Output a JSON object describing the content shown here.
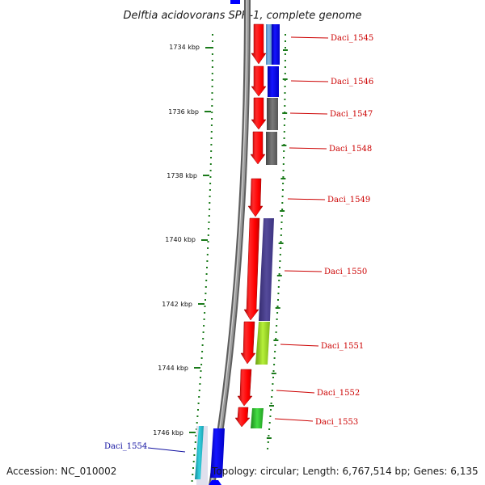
{
  "title": "Delftia acidovorans SPH-1, complete genome",
  "footer": {
    "accession": "Accession: NC_010002",
    "topology": "Topology: circular; Length: 6,767,514 bp; Genes: 6,135"
  },
  "ruler_labels": [
    "1734 kbp",
    "1736 kbp",
    "1738 kbp",
    "1740 kbp",
    "1742 kbp",
    "1744 kbp",
    "1746 kbp"
  ],
  "gene_labels": [
    "Daci_1545",
    "Daci_1546",
    "Daci_1547",
    "Daci_1548",
    "Daci_1549",
    "Daci_1550",
    "Daci_1551",
    "Daci_1552",
    "Daci_1553",
    "Daci_1554"
  ],
  "colors": {
    "forward_gene": "#ff0000",
    "label_red": "#cc0000",
    "label_blue": "#1010a0",
    "ruler_tick": "#1a7a1a",
    "backbone": "#888888",
    "cog_blue": "#0000ff",
    "cog_light_blue": "#6fa8dc",
    "cog_grey": "#666666",
    "cog_slate": "#4a3f8c",
    "cog_yellow_green": "#99dd22",
    "cog_green": "#33cc33",
    "cog_cyan": "#22bbcc"
  }
}
